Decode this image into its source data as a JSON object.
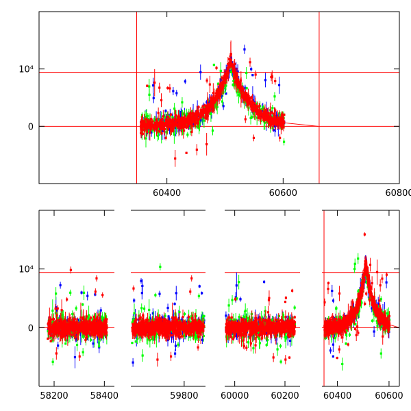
{
  "colors": {
    "red": "#ff0000",
    "green": "#00ff00",
    "blue": "#0000ff",
    "frame": "#000000",
    "ref": "#ff0000"
  },
  "chart_data": [
    {
      "type": "scatter",
      "title": "",
      "xlabel": "",
      "ylabel": "",
      "xlim": [
        60180,
        60800
      ],
      "ylim": [
        -10000,
        20000
      ],
      "x_ticks": [
        {
          "v": 60400,
          "label": "60400"
        },
        {
          "v": 60600,
          "label": "60600"
        },
        {
          "v": 60800,
          "label": "60800"
        }
      ],
      "y_ticks": [
        {
          "v": 0,
          "label": "0"
        },
        {
          "v": 10000,
          "label": "10⁴"
        }
      ],
      "vlines": [
        60348,
        60662
      ],
      "hlines": [
        0,
        9400
      ],
      "series_colors": [
        "red",
        "green",
        "blue"
      ],
      "segments": [
        {
          "x0": 60355,
          "x1": 60602,
          "peak_x": 60510,
          "peak_y": 11500,
          "w_left": 30,
          "w_right": 32
        }
      ],
      "tail": {
        "x0": 60602,
        "x1": 60660,
        "y0": 600,
        "y1": 0
      }
    },
    {
      "type": "scatter",
      "title": "",
      "xlabel": "",
      "ylabel": "",
      "ylim": [
        -10000,
        20000
      ],
      "panels": [
        {
          "xlim": [
            58140,
            58440
          ],
          "ticks": [
            {
              "v": 58200,
              "label": "58200"
            },
            {
              "v": 58400,
              "label": "58400"
            }
          ]
        },
        {
          "xlim": [
            59600,
            59880
          ],
          "ticks": [
            {
              "v": 59800,
              "label": "59800"
            }
          ]
        },
        {
          "xlim": [
            59960,
            60260
          ],
          "ticks": [
            {
              "v": 60000,
              "label": "60000"
            },
            {
              "v": 60200,
              "label": "60200"
            }
          ]
        },
        {
          "xlim": [
            60340,
            60640
          ],
          "ticks": [
            {
              "v": 60400,
              "label": "60400"
            },
            {
              "v": 60600,
              "label": "60600"
            }
          ]
        }
      ],
      "y_ticks": [
        {
          "v": 0,
          "label": "0"
        },
        {
          "v": 10000,
          "label": "10⁴"
        }
      ],
      "hlines": [
        0,
        9400
      ],
      "vlines": [
        60348
      ],
      "series_colors": [
        "red",
        "green",
        "blue"
      ],
      "segments": [
        {
          "x0": 58175,
          "x1": 58410,
          "peak_x": 0,
          "peak_y": 0
        },
        {
          "x0": 59605,
          "x1": 59875,
          "peak_x": 0,
          "peak_y": 0
        },
        {
          "x0": 59965,
          "x1": 60240,
          "peak_x": 0,
          "peak_y": 0
        },
        {
          "x0": 60350,
          "x1": 60602,
          "peak_x": 60510,
          "peak_y": 11000,
          "w_left": 30,
          "w_right": 30
        }
      ],
      "tail": {
        "x0": 60602,
        "x1": 60640,
        "y0": 500,
        "y1": 0
      }
    }
  ]
}
